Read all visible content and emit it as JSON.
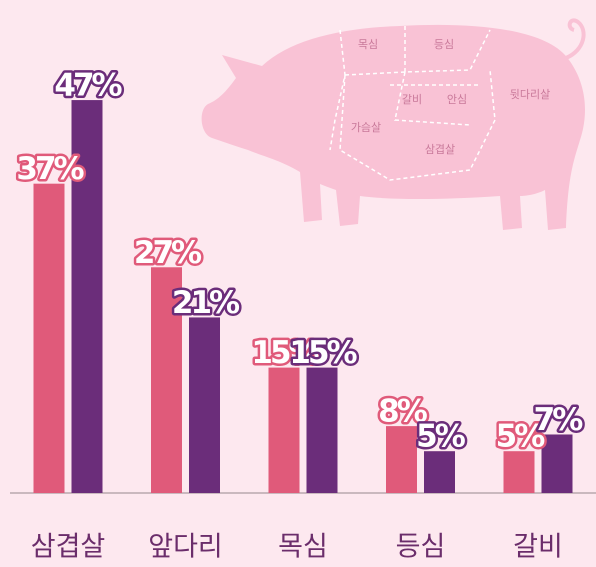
{
  "chart_data": {
    "type": "bar",
    "categories": [
      "삼겹살",
      "앞다리",
      "목심",
      "등심",
      "갈비"
    ],
    "series": [
      {
        "color": "#e05a7a",
        "values": [
          37,
          27,
          15,
          8,
          5
        ],
        "value_labels": [
          "37%",
          "27%",
          "15%",
          "8%",
          "5%"
        ]
      },
      {
        "color": "#6b2d7a",
        "values": [
          47,
          21,
          15,
          5,
          7
        ],
        "value_labels": [
          "47%",
          "21%",
          "15%",
          "5%",
          "7%"
        ]
      }
    ],
    "ylim": [
      0,
      50
    ],
    "illustration_labels": [
      "목심",
      "등심",
      "갈비",
      "안심",
      "뒷다리살",
      "가슴살",
      "삼겹살"
    ]
  }
}
